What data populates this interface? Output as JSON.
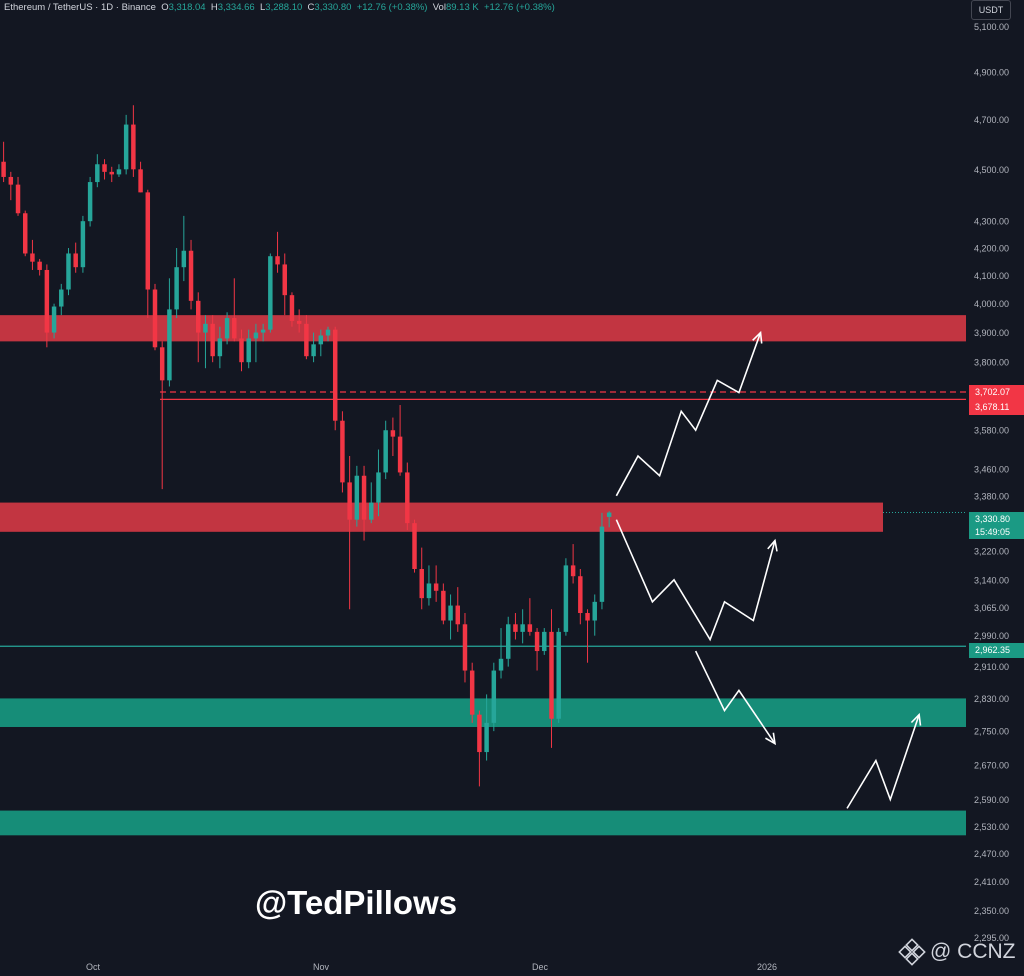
{
  "header": {
    "symbol": "Ethereum / TetherUS · 1D · Binance",
    "o_label": "O",
    "o_val": "3,318.04",
    "h_label": "H",
    "h_val": "3,334.66",
    "l_label": "L",
    "l_val": "3,288.10",
    "c_label": "C",
    "c_val": "3,330.80",
    "change": "+12.76 (+0.38%)",
    "vol_label": "Vol",
    "vol_val": "89.13 K",
    "vol_change": "+12.76 (+0.38%)"
  },
  "currency_button": "USDT",
  "watermark": "@TedPillows",
  "brand": {
    "text": "@ CCNZ",
    "icon": "binance-diamond-icon"
  },
  "colors": {
    "up": "#26a69a",
    "down": "#f23645",
    "resistance": "#f23645",
    "support": "#1b9a84",
    "bg": "#131722"
  },
  "price_tags": {
    "current": "3,330.80",
    "countdown": "15:49:05",
    "level_green": "2,962.35",
    "level_red_1": "3,702.07",
    "level_red_2": "3,678.11"
  },
  "chart_data": {
    "type": "candlestick",
    "title": "",
    "pair": "Ethereum / TetherUS",
    "timeframe": "1D",
    "exchange": "Binance",
    "ylabel": "USDT",
    "yscale": "log",
    "ylim": [
      2260,
      5220
    ],
    "y_ticks": [
      "5,100.00",
      "4,900.00",
      "4,700.00",
      "4,500.00",
      "4,300.00",
      "4,200.00",
      "4,100.00",
      "4,000.00",
      "3,900.00",
      "3,800.00",
      "3,580.00",
      "3,460.00",
      "3,380.00",
      "3,220.00",
      "3,140.00",
      "3,065.00",
      "2,990.00",
      "2,910.00",
      "2,830.00",
      "2,750.00",
      "2,670.00",
      "2,590.00",
      "2,530.00",
      "2,470.00",
      "2,410.00",
      "2,350.00",
      "2,295.00"
    ],
    "x_ticks": [
      "Oct",
      "Nov",
      "Dec",
      "2026"
    ],
    "candles": [
      [
        4530,
        4610,
        4450,
        4470
      ],
      [
        4470,
        4490,
        4380,
        4440
      ],
      [
        4440,
        4470,
        4320,
        4330
      ],
      [
        4330,
        4340,
        4170,
        4180
      ],
      [
        4180,
        4230,
        4120,
        4150
      ],
      [
        4150,
        4160,
        4100,
        4120
      ],
      [
        4120,
        4140,
        3850,
        3900
      ],
      [
        3900,
        4000,
        3880,
        3990
      ],
      [
        3990,
        4070,
        3960,
        4050
      ],
      [
        4050,
        4200,
        4030,
        4180
      ],
      [
        4180,
        4220,
        4110,
        4130
      ],
      [
        4130,
        4320,
        4110,
        4300
      ],
      [
        4300,
        4470,
        4280,
        4450
      ],
      [
        4450,
        4560,
        4430,
        4520
      ],
      [
        4520,
        4540,
        4460,
        4490
      ],
      [
        4490,
        4510,
        4450,
        4480
      ],
      [
        4480,
        4520,
        4470,
        4500
      ],
      [
        4500,
        4720,
        4480,
        4680
      ],
      [
        4680,
        4760,
        4470,
        4500
      ],
      [
        4500,
        4530,
        4410,
        4410
      ],
      [
        4410,
        4420,
        3950,
        4050
      ],
      [
        4050,
        4070,
        3840,
        3850
      ],
      [
        3850,
        3870,
        3400,
        3740
      ],
      [
        3740,
        4090,
        3720,
        3980
      ],
      [
        3980,
        4200,
        3950,
        4130
      ],
      [
        4130,
        4320,
        4080,
        4190
      ],
      [
        4190,
        4230,
        3980,
        4010
      ],
      [
        4010,
        4040,
        3800,
        3900
      ],
      [
        3900,
        3960,
        3780,
        3930
      ],
      [
        3930,
        3960,
        3800,
        3820
      ],
      [
        3820,
        3920,
        3780,
        3880
      ],
      [
        3880,
        3970,
        3860,
        3950
      ],
      [
        3950,
        4090,
        3870,
        3880
      ],
      [
        3880,
        3910,
        3770,
        3800
      ],
      [
        3800,
        3910,
        3780,
        3880
      ],
      [
        3880,
        3930,
        3800,
        3900
      ],
      [
        3900,
        3930,
        3870,
        3910
      ],
      [
        3910,
        4180,
        3900,
        4170
      ],
      [
        4170,
        4260,
        4110,
        4140
      ],
      [
        4140,
        4180,
        3960,
        4030
      ],
      [
        4030,
        4040,
        3920,
        3940
      ],
      [
        3940,
        3980,
        3900,
        3930
      ],
      [
        3930,
        3960,
        3810,
        3820
      ],
      [
        3820,
        3900,
        3800,
        3860
      ],
      [
        3860,
        3910,
        3820,
        3890
      ],
      [
        3890,
        3920,
        3870,
        3910
      ],
      [
        3910,
        3920,
        3580,
        3610
      ],
      [
        3610,
        3640,
        3390,
        3420
      ],
      [
        3420,
        3500,
        3060,
        3310
      ],
      [
        3310,
        3470,
        3290,
        3440
      ],
      [
        3440,
        3470,
        3250,
        3310
      ],
      [
        3310,
        3420,
        3300,
        3360
      ],
      [
        3360,
        3520,
        3320,
        3450
      ],
      [
        3450,
        3610,
        3430,
        3580
      ],
      [
        3580,
        3620,
        3500,
        3560
      ],
      [
        3560,
        3660,
        3440,
        3450
      ],
      [
        3450,
        3480,
        3280,
        3300
      ],
      [
        3300,
        3310,
        3160,
        3170
      ],
      [
        3170,
        3230,
        3060,
        3090
      ],
      [
        3090,
        3180,
        3070,
        3130
      ],
      [
        3130,
        3180,
        3080,
        3110
      ],
      [
        3110,
        3130,
        3020,
        3030
      ],
      [
        3030,
        3100,
        2980,
        3070
      ],
      [
        3070,
        3120,
        3000,
        3020
      ],
      [
        3020,
        3050,
        2870,
        2900
      ],
      [
        2900,
        2920,
        2770,
        2790
      ],
      [
        2790,
        2800,
        2620,
        2700
      ],
      [
        2700,
        2840,
        2680,
        2770
      ],
      [
        2770,
        2920,
        2750,
        2900
      ],
      [
        2900,
        3010,
        2880,
        2930
      ],
      [
        2930,
        3040,
        2910,
        3020
      ],
      [
        3020,
        3050,
        2980,
        3000
      ],
      [
        3000,
        3060,
        2970,
        3020
      ],
      [
        3020,
        3090,
        2990,
        3000
      ],
      [
        3000,
        3010,
        2900,
        2950
      ],
      [
        2950,
        3010,
        2940,
        3000
      ],
      [
        3000,
        3060,
        2710,
        2780
      ],
      [
        2780,
        3010,
        2770,
        3000
      ],
      [
        3000,
        3200,
        2990,
        3180
      ],
      [
        3180,
        3240,
        3130,
        3150
      ],
      [
        3150,
        3170,
        3020,
        3050
      ],
      [
        3050,
        3060,
        2920,
        3030
      ],
      [
        3030,
        3100,
        2990,
        3080
      ],
      [
        3080,
        3330,
        3060,
        3290
      ],
      [
        3318.04,
        3334.66,
        3288.1,
        3330.8
      ]
    ],
    "horizontal_zones": [
      {
        "kind": "resistance",
        "from": 3870,
        "to": 3960
      },
      {
        "kind": "resistance",
        "from": 3275,
        "to": 3360
      },
      {
        "kind": "support",
        "from": 2760,
        "to": 2830
      },
      {
        "kind": "support",
        "from": 2510,
        "to": 2565
      }
    ],
    "horizontal_lines": [
      {
        "value": 3702.07,
        "style": "dashed",
        "color": "red"
      },
      {
        "value": 3678.11,
        "style": "solid",
        "color": "red"
      },
      {
        "value": 2962.35,
        "style": "solid",
        "color": "green"
      }
    ],
    "projection_paths": [
      [
        [
          85,
          3380
        ],
        [
          88,
          3500
        ],
        [
          91,
          3440
        ],
        [
          94,
          3640
        ],
        [
          96,
          3580
        ],
        [
          99,
          3740
        ],
        [
          102,
          3700
        ],
        [
          105,
          3900
        ]
      ],
      [
        [
          85,
          3310
        ],
        [
          90,
          3080
        ],
        [
          93,
          3140
        ],
        [
          98,
          2980
        ],
        [
          100,
          3080
        ],
        [
          104,
          3030
        ],
        [
          107,
          3250
        ]
      ],
      [
        [
          96,
          2950
        ],
        [
          100,
          2800
        ],
        [
          102,
          2850
        ],
        [
          107,
          2720
        ]
      ],
      [
        [
          117,
          2570
        ],
        [
          121,
          2680
        ],
        [
          123,
          2590
        ],
        [
          127,
          2790
        ]
      ]
    ],
    "x_range": [
      -0.5,
      133.5
    ]
  }
}
